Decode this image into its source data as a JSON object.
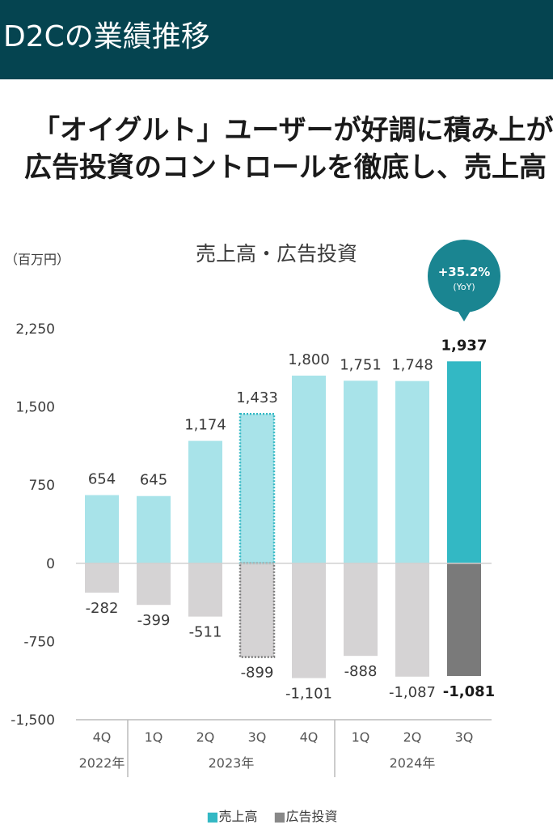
{
  "page": {
    "title": "D2Cの業績推移",
    "headline_line1": "「オイグルト」ユーザーが好調に積み上が",
    "headline_line2": "広告投資のコントロールを徹底し、売上高"
  },
  "colors": {
    "header_bg": "#054450",
    "sales": "#a8e3e9",
    "sales_highlight": "#33b8c4",
    "ad": "#d5d3d4",
    "ad_highlight": "#7a7a7a",
    "badge": "#1a8591"
  },
  "chart_data": {
    "type": "bar",
    "title": "売上高・広告投資",
    "unit_label": "（百万円）",
    "categories": [
      "4Q",
      "1Q",
      "2Q",
      "3Q",
      "4Q",
      "1Q",
      "2Q",
      "3Q"
    ],
    "year_groups": [
      {
        "label": "2022年",
        "span": 1
      },
      {
        "label": "2023年",
        "span": 4
      },
      {
        "label": "2024年",
        "span": 3
      }
    ],
    "series": [
      {
        "name": "売上高",
        "values": [
          654,
          645,
          1174,
          1433,
          1800,
          1751,
          1748,
          1937
        ],
        "labels": [
          "654",
          "645",
          "1,174",
          "1,433",
          "1,800",
          "1,751",
          "1,748",
          "1,937"
        ]
      },
      {
        "name": "広告投資",
        "values": [
          -282,
          -399,
          -511,
          -899,
          -1101,
          -888,
          -1087,
          -1081
        ],
        "labels": [
          "-282",
          "-399",
          "-511",
          "-899",
          "-1,101",
          "-888",
          "-1,087",
          "-1,081"
        ]
      }
    ],
    "yticks": [
      2250,
      1500,
      750,
      0,
      -750,
      -1500
    ],
    "ytick_labels": [
      "2,250",
      "1,500",
      "750",
      "0",
      "-750",
      "-1,500"
    ],
    "ylim": [
      -1500,
      2250
    ],
    "highlight_index": 7,
    "dashed_outline_index": 3,
    "badge": {
      "value": "+35.2%",
      "sub": "(YoY)"
    },
    "legend": [
      {
        "label": "■売上高"
      },
      {
        "label": "■広告投資"
      }
    ],
    "legend_position": "bottom-center"
  }
}
